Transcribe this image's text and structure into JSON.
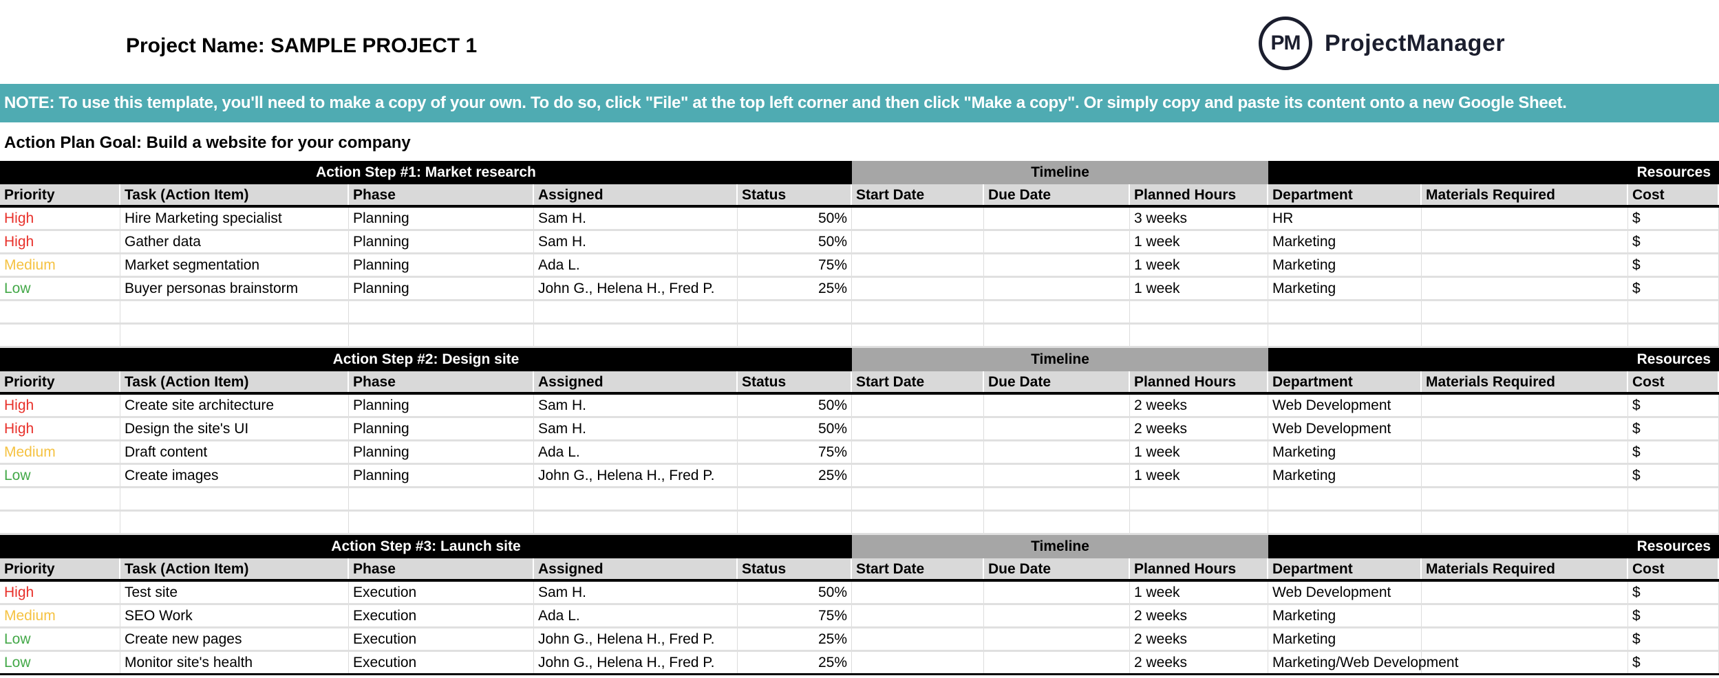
{
  "header": {
    "project_title": "Project Name: SAMPLE PROJECT 1",
    "logo_mark": "PM",
    "logo_text": "ProjectManager",
    "logo_color": "#1b1e2e"
  },
  "note": "NOTE: To use this template, you'll need to make a copy of your own. To do so, click \"File\" at the top left corner and then click \"Make a copy\". Or simply copy and paste its content onto a new Google Sheet.",
  "goal": "Action Plan Goal: Build a website for your company",
  "colors": {
    "note_bg": "#4fabb2",
    "High": "#e8302a",
    "Medium": "#f5c242",
    "Low": "#43a848",
    "timeline_bg": "#a6a6a6"
  },
  "columns": [
    "Priority",
    "Task (Action Item)",
    "Phase",
    "Assigned",
    "Status",
    "Start Date",
    "Due Date",
    "Planned Hours",
    "Department",
    "Materials Required",
    "Cost"
  ],
  "timeline_label": "Timeline",
  "resources_label": "Resources",
  "sections": [
    {
      "title": "Action Step #1: Market research",
      "empty_rows": 2,
      "rows": [
        [
          "High",
          "Hire Marketing specialist",
          "Planning",
          "Sam H.",
          "50%",
          "",
          "",
          "3 weeks",
          "HR",
          "",
          "$"
        ],
        [
          "High",
          "Gather data",
          "Planning",
          "Sam H.",
          "50%",
          "",
          "",
          "1 week",
          "Marketing",
          "",
          "$"
        ],
        [
          "Medium",
          "Market segmentation",
          "Planning",
          "Ada L.",
          "75%",
          "",
          "",
          "1 week",
          "Marketing",
          "",
          "$"
        ],
        [
          "Low",
          "Buyer personas brainstorm",
          "Planning",
          "John G., Helena H., Fred P.",
          "25%",
          "",
          "",
          "1 week",
          "Marketing",
          "",
          "$"
        ]
      ]
    },
    {
      "title": "Action Step #2: Design site",
      "empty_rows": 2,
      "rows": [
        [
          "High",
          "Create site architecture",
          "Planning",
          "Sam H.",
          "50%",
          "",
          "",
          "2 weeks",
          "Web Development",
          "",
          "$"
        ],
        [
          "High",
          "Design the site's UI",
          "Planning",
          "Sam H.",
          "50%",
          "",
          "",
          "2 weeks",
          "Web Development",
          "",
          "$"
        ],
        [
          "Medium",
          "Draft content",
          "Planning",
          "Ada L.",
          "75%",
          "",
          "",
          "1 week",
          "Marketing",
          "",
          "$"
        ],
        [
          "Low",
          "Create images",
          "Planning",
          "John G., Helena H., Fred P.",
          "25%",
          "",
          "",
          "1 week",
          "Marketing",
          "",
          "$"
        ]
      ]
    },
    {
      "title": "Action Step #3: Launch site",
      "empty_rows": 0,
      "rows": [
        [
          "High",
          "Test site",
          "Execution",
          "Sam H.",
          "50%",
          "",
          "",
          "1 week",
          "Web Development",
          "",
          "$"
        ],
        [
          "Medium",
          "SEO Work",
          "Execution",
          "Ada L.",
          "75%",
          "",
          "",
          "2 weeks",
          "Marketing",
          "",
          "$"
        ],
        [
          "Low",
          "Create new pages",
          "Execution",
          "John G., Helena H., Fred P.",
          "25%",
          "",
          "",
          "2 weeks",
          "Marketing",
          "",
          "$"
        ],
        [
          "Low",
          "Monitor site's health",
          "Execution",
          "John G., Helena H., Fred P.",
          "25%",
          "",
          "",
          "2 weeks",
          "Marketing/Web Development",
          "",
          "$"
        ]
      ]
    }
  ]
}
